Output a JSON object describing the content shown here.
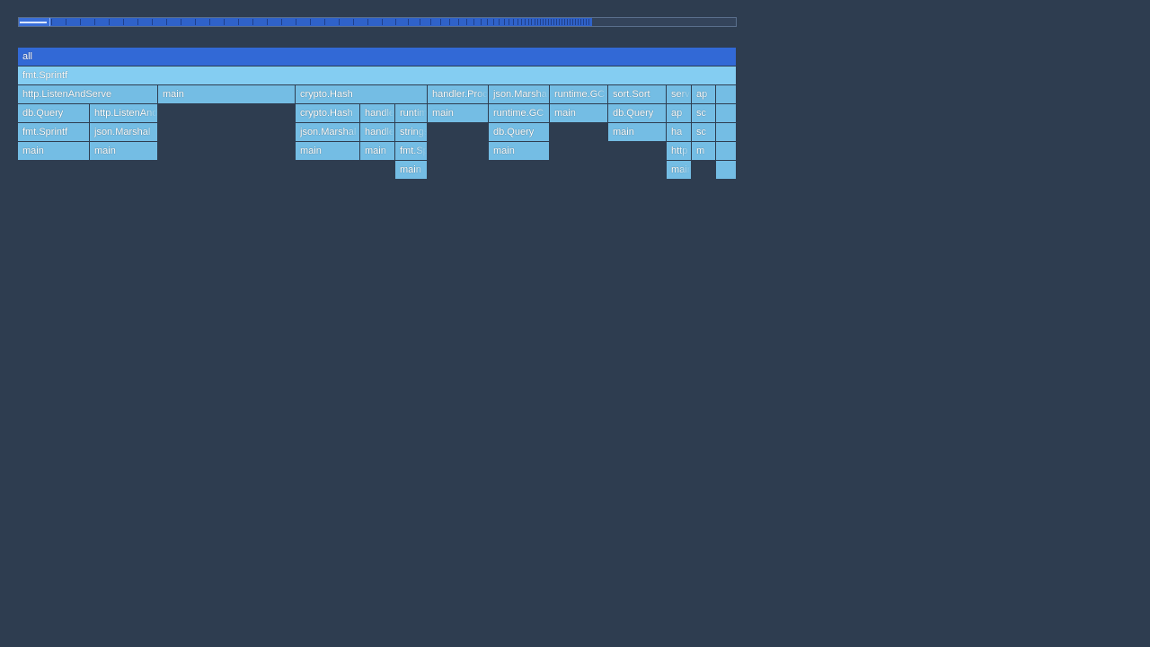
{
  "minimap": {
    "viewport_fraction": 0.044,
    "fill_fraction": 0.8
  },
  "flamegraph": {
    "root": "all",
    "rows": [
      [
        "all"
      ],
      [
        "fmt.Sprintf"
      ],
      [
        "http.ListenAndServe",
        "main",
        "crypto.Hash",
        "handler.Process",
        "json.Marshal",
        "runtime.GC",
        "sort.Sort",
        "serve",
        "ap",
        ""
      ],
      [
        "db.Query",
        "http.ListenAndServe",
        "crypto.Hash",
        "handler",
        "runtime",
        "main",
        "runtime.GC",
        "main",
        "db.Query",
        "ap",
        "sc",
        ""
      ],
      [
        "fmt.Sprintf",
        "json.Marshal",
        "json.Marshal",
        "handler",
        "strings",
        "db.Query",
        "main",
        "ha",
        "sc",
        ""
      ],
      [
        "main",
        "main",
        "main",
        "main",
        "fmt.Sprintf",
        "main",
        "http",
        "m",
        ""
      ],
      [
        "main",
        "main",
        ""
      ]
    ]
  },
  "colors": {
    "background": "#2e3d50",
    "root": "#3269d6",
    "selected": "#84cdf2",
    "frame": "#74bde4"
  }
}
